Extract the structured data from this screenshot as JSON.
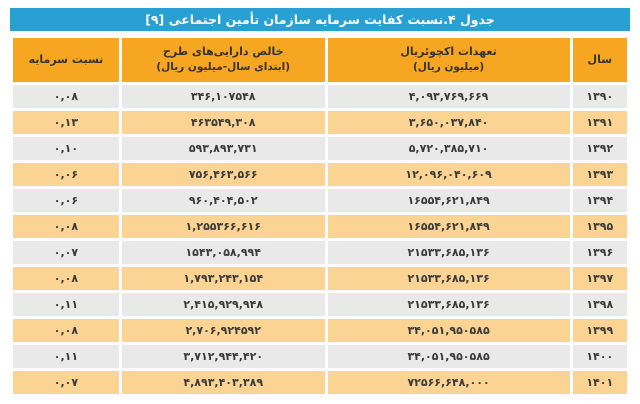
{
  "title": "جدول ۴.نسبت کفایت سرمایه سازمان تأمین اجتماعی [۹]",
  "colors": {
    "title_bar": "#29a0d3",
    "header_row": "#f6a621",
    "row_highlight": "#fbd392",
    "row_plain": "#e9e9e9",
    "text": "#3a3a3a",
    "title_text": "#ffffff"
  },
  "table": {
    "columns": [
      {
        "key": "year",
        "label": "سال",
        "sub": ""
      },
      {
        "key": "obligations",
        "label": "تعهدات اکچوئریال",
        "sub": "(میلیون ریال)"
      },
      {
        "key": "net_assets",
        "label": "خالص دارایی‌های طرح",
        "sub": "(ابتدای سال-میلیون ریال)"
      },
      {
        "key": "ratio",
        "label": "نسبت سرمایه",
        "sub": ""
      }
    ],
    "rows": [
      {
        "year": "۱۳۹۰",
        "obligations": "۴,۰۹۳,۷۶۹,۶۶۹",
        "net_assets": "۳۴۶,۱۰۷۵۴۸",
        "ratio": "۰,۰۸"
      },
      {
        "year": "۱۳۹۱",
        "obligations": "۳,۶۵۰,۰۳۷,۸۴۰",
        "net_assets": "۴۶۳۵۴۹,۳۰۸",
        "ratio": "۰,۱۳"
      },
      {
        "year": "۱۳۹۲",
        "obligations": "۵,۷۲۰,۳۸۵,۷۱۰",
        "net_assets": "۵۹۳,۸۹۳,۷۳۱",
        "ratio": "۰,۱۰"
      },
      {
        "year": "۱۳۹۳",
        "obligations": "۱۲,۰۹۶,۰۴۰,۶۰۹",
        "net_assets": "۷۵۶,۴۶۳,۵۶۶",
        "ratio": "۰,۰۶"
      },
      {
        "year": "۱۳۹۴",
        "obligations": "۱۶۵۵۴,۶۲۱,۸۴۹",
        "net_assets": "۹۶۰,۴۰۴,۵۰۲",
        "ratio": "۰,۰۶"
      },
      {
        "year": "۱۳۹۵",
        "obligations": "۱۶۵۵۴,۶۲۱,۸۴۹",
        "net_assets": "۱,۲۵۵۳۶۶,۶۱۶",
        "ratio": "۰,۰۸"
      },
      {
        "year": "۱۳۹۶",
        "obligations": "۲۱۵۳۳,۶۸۵,۱۳۶",
        "net_assets": "۱۵۴۳,۰۵۸,۹۹۴",
        "ratio": "۰,۰۷"
      },
      {
        "year": "۱۳۹۷",
        "obligations": "۲۱۵۳۳,۶۸۵,۱۳۶",
        "net_assets": "۱,۷۹۳,۲۴۳,۱۵۴",
        "ratio": "۰,۰۸"
      },
      {
        "year": "۱۳۹۸",
        "obligations": "۲۱۵۳۳,۶۸۵,۱۳۶",
        "net_assets": "۲,۴۱۵,۹۲۹,۹۴۸",
        "ratio": "۰,۱۱"
      },
      {
        "year": "۱۳۹۹",
        "obligations": "۳۴,۰۵۱,۹۵۰۵۸۵",
        "net_assets": "۲,۷۰۶,۹۲۴۵۹۲",
        "ratio": "۰,۰۸"
      },
      {
        "year": "۱۴۰۰",
        "obligations": "۳۴,۰۵۱,۹۵۰۵۸۵",
        "net_assets": "۳,۷۱۲,۹۴۴,۴۲۰",
        "ratio": "۰,۱۱"
      },
      {
        "year": "۱۴۰۱",
        "obligations": "۷۲۵۶۶,۶۴۸,۰۰۰",
        "net_assets": "۴,۸۹۳,۴۰۳,۳۸۹",
        "ratio": "۰,۰۷"
      }
    ]
  }
}
